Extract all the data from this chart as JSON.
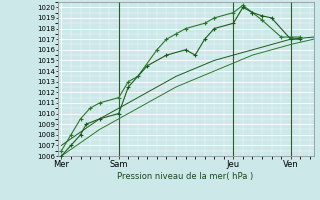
{
  "background_color": "#cce8e8",
  "plot_bg": "#cce8e8",
  "grid_color": "#ffffff",
  "xlabel": "Pression niveau de la mer( hPa )",
  "ylim": [
    1006,
    1020.5
  ],
  "yticks": [
    1006,
    1007,
    1008,
    1009,
    1010,
    1011,
    1012,
    1013,
    1014,
    1015,
    1016,
    1017,
    1018,
    1019,
    1020
  ],
  "xtick_labels": [
    "Mer",
    "Sam",
    "Jeu",
    "Ven"
  ],
  "xtick_positions": [
    0,
    3,
    9,
    12
  ],
  "xlim": [
    -0.2,
    13.2
  ],
  "series1": {
    "x": [
      0,
      0.5,
      1,
      1.3,
      2,
      3,
      3.5,
      4.5,
      5.5,
      6.5,
      7,
      7.5,
      8,
      9,
      9.5,
      10,
      10.5,
      11,
      12,
      12.5
    ],
    "y": [
      1006,
      1007,
      1008,
      1009,
      1009.5,
      1010,
      1012.5,
      1014.5,
      1015.5,
      1016,
      1015.5,
      1017,
      1018,
      1018.5,
      1020,
      1019.5,
      1019.2,
      1019,
      1017,
      1017
    ],
    "color": "#1a5c1a",
    "marker": "+"
  },
  "series2": {
    "x": [
      0,
      0.5,
      1,
      1.5,
      2,
      3,
      3.5,
      4.0,
      5,
      5.5,
      6,
      6.5,
      7.5,
      8,
      9,
      9.5,
      10,
      10.5,
      11.5,
      12,
      12.5
    ],
    "y": [
      1006.5,
      1008,
      1009.5,
      1010.5,
      1011,
      1011.5,
      1013,
      1013.5,
      1016,
      1017,
      1017.5,
      1018,
      1018.5,
      1019,
      1019.5,
      1020.2,
      1019.5,
      1018.8,
      1017.2,
      1017.2,
      1017.2
    ],
    "color": "#2a7a2a",
    "marker": "+"
  },
  "series3": {
    "x": [
      0,
      2,
      4,
      6,
      8,
      10,
      12,
      13.2
    ],
    "y": [
      1007,
      1009.5,
      1011.5,
      1013.5,
      1015,
      1016,
      1017,
      1017.2
    ],
    "color": "#1a5c1a",
    "marker": null
  },
  "series4": {
    "x": [
      0,
      2,
      4,
      6,
      8,
      10,
      12,
      13.2
    ],
    "y": [
      1006,
      1008.5,
      1010.5,
      1012.5,
      1014,
      1015.5,
      1016.5,
      1017
    ],
    "color": "#2a7a2a",
    "marker": null
  },
  "vlines": [
    3,
    9,
    12
  ],
  "vline_color": "#2d5a2d",
  "tick_fontsize": 5,
  "xlabel_fontsize": 6
}
